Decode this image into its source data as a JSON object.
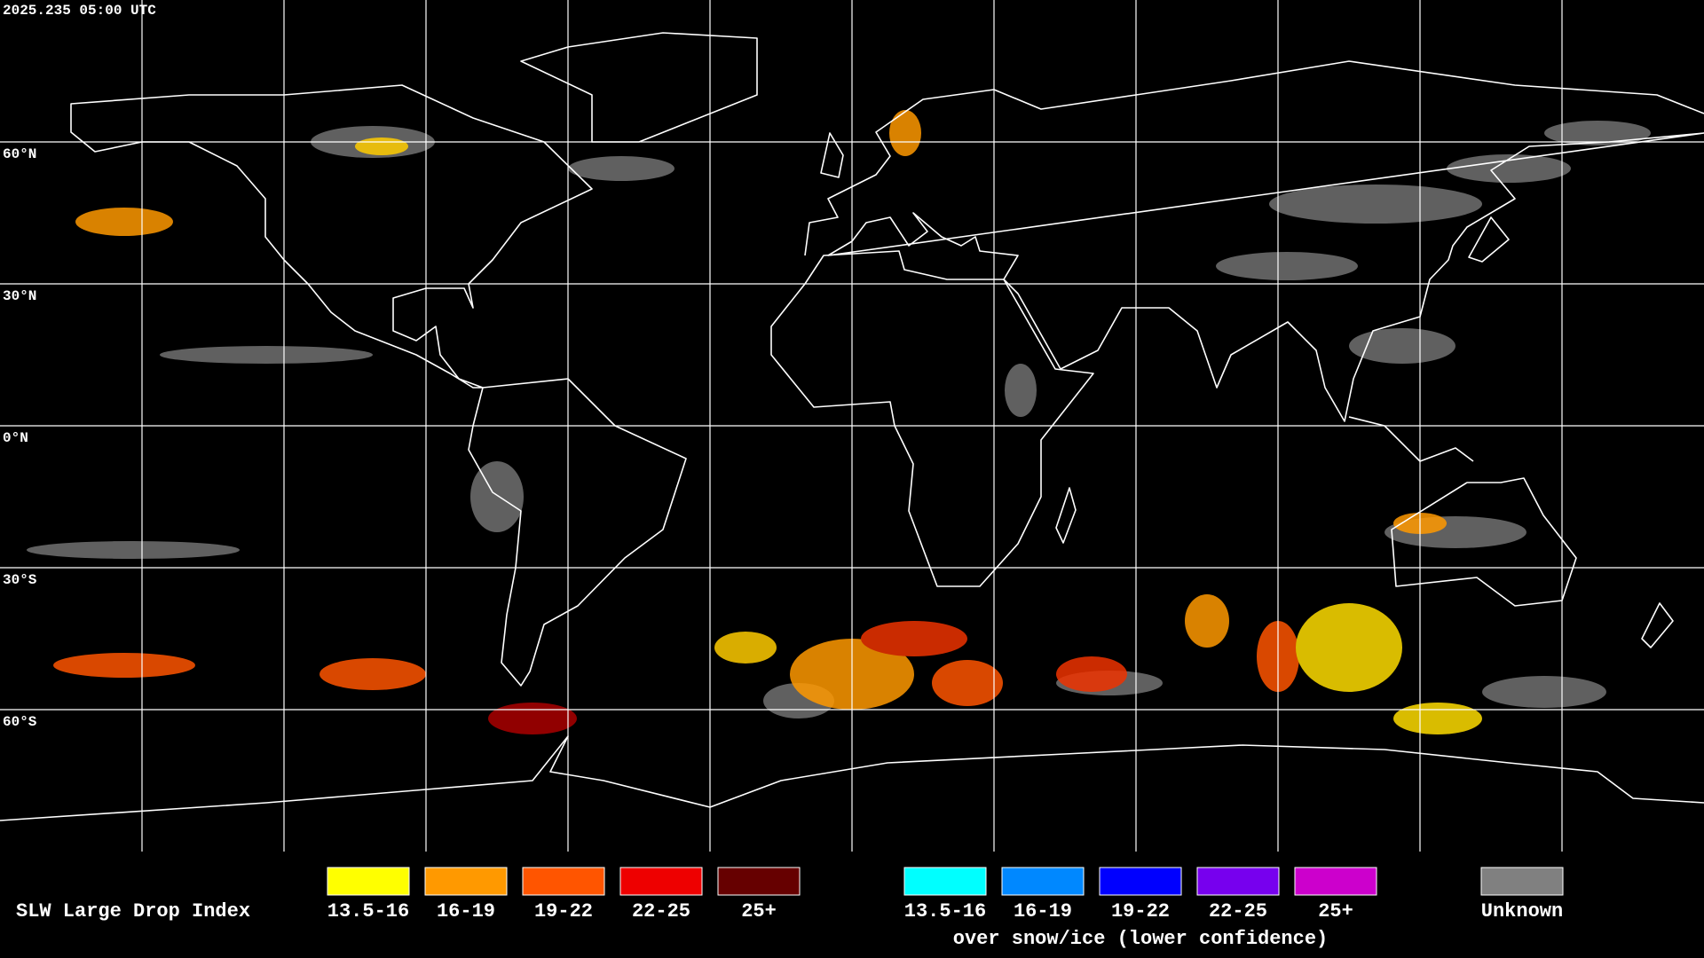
{
  "header": {
    "timestamp": "2025.235 05:00 UTC"
  },
  "map": {
    "latitude_labels": [
      "60°N",
      "30°N",
      "0°N",
      "30°S",
      "60°S"
    ]
  },
  "legend": {
    "title": "SLW Large Drop Index",
    "groups": [
      {
        "items": [
          {
            "label": "13.5-16",
            "color": "#ffff00"
          },
          {
            "label": "16-19",
            "color": "#ff9900"
          },
          {
            "label": "19-22",
            "color": "#ff5500"
          },
          {
            "label": "22-25",
            "color": "#ee0000"
          },
          {
            "label": "25+",
            "color": "#660000"
          }
        ]
      },
      {
        "items": [
          {
            "label": "13.5-16",
            "color": "#00ffff"
          },
          {
            "label": "16-19",
            "color": "#0088ff"
          },
          {
            "label": "19-22",
            "color": "#0000ff"
          },
          {
            "label": "22-25",
            "color": "#7700ee"
          },
          {
            "label": "25+",
            "color": "#cc00cc"
          }
        ],
        "caption": "over snow/ice (lower confidence)"
      },
      {
        "items": [
          {
            "label": "Unknown",
            "color": "#808080"
          }
        ]
      }
    ]
  }
}
